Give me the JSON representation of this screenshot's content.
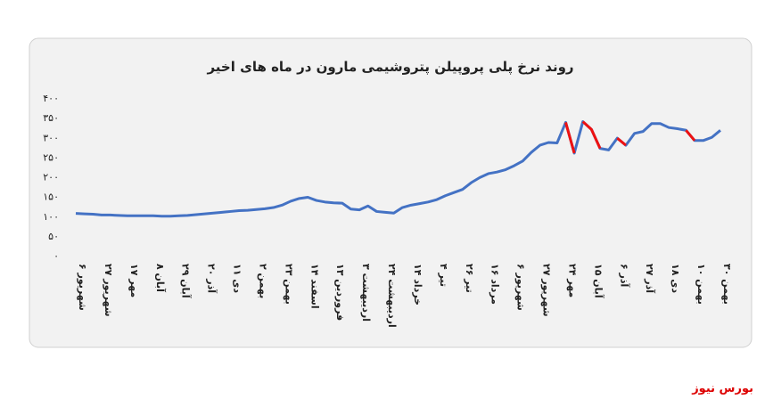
{
  "chart_data": {
    "type": "line",
    "title": "روند نرخ پلی پروپیلن پتروشیمی مارون در ماه های اخیر",
    "categories": [
      "۶ شهریور",
      null,
      null,
      "۲۷ شهریور",
      null,
      null,
      "۱۷ مهر",
      null,
      null,
      "۸ آبان",
      null,
      null,
      "۲۹ آبان",
      null,
      null,
      "۲۰ آذر",
      null,
      null,
      "۱۱ دی",
      null,
      null,
      "۲ بهمن",
      null,
      null,
      "۲۳ بهمن",
      null,
      null,
      "۱۴ اسفند",
      null,
      null,
      "۱۳ فروردین",
      null,
      null,
      "۳ اردیبهشت",
      null,
      null,
      "۲۴ اردیبهشت",
      null,
      null,
      "۱۴ خرداد",
      null,
      null,
      "۴ تیر",
      null,
      null,
      "۲۶ تیر",
      null,
      null,
      "۱۶ مرداد",
      null,
      null,
      "۶ شهریور",
      null,
      null,
      "۲۷ شهریور",
      null,
      null,
      "۲۴ مهر",
      null,
      null,
      "۱۵ آبان",
      null,
      null,
      "۶ آذر",
      null,
      null,
      "۲۷ آذر",
      null,
      null,
      "۱۸ دی",
      null,
      null,
      "۱۰ بهمن",
      null,
      null,
      "۳۰ بهمن"
    ],
    "series": [
      {
        "color": "#4472c4",
        "values": [
          107,
          106,
          105,
          103,
          103,
          102,
          101,
          101,
          101,
          101,
          100,
          100,
          101,
          102,
          104,
          106,
          108,
          110,
          112,
          114,
          115,
          117,
          119,
          122,
          128,
          138,
          145,
          148,
          140,
          136,
          134,
          133,
          118,
          116,
          126,
          112,
          110,
          108,
          122,
          128,
          132,
          136,
          142,
          152,
          160,
          168,
          185,
          198,
          208,
          212,
          218,
          228,
          240,
          262,
          280,
          287,
          286,
          338,
          260,
          340,
          320,
          272,
          268,
          298,
          280,
          310,
          315,
          335,
          335,
          325,
          322,
          318,
          292,
          292,
          300,
          318
        ]
      }
    ],
    "highlight_color": "#ee1111",
    "highlight_segments": [
      [
        57,
        58
      ],
      [
        59,
        61
      ],
      [
        63,
        64
      ],
      [
        71,
        72
      ]
    ],
    "ylim": [
      0,
      400
    ],
    "yticks": [
      {
        "value": 0,
        "label": "۰"
      },
      {
        "value": 50,
        "label": "۵۰"
      },
      {
        "value": 100,
        "label": "۱۰۰"
      },
      {
        "value": 150,
        "label": "۱۵۰"
      },
      {
        "value": 200,
        "label": "۲۰۰"
      },
      {
        "value": 250,
        "label": "۲۵۰"
      },
      {
        "value": 300,
        "label": "۳۰۰"
      },
      {
        "value": 350,
        "label": "۳۵۰"
      },
      {
        "value": 400,
        "label": "۴۰۰"
      }
    ],
    "grid": false
  },
  "footer": "بورس نیوز"
}
